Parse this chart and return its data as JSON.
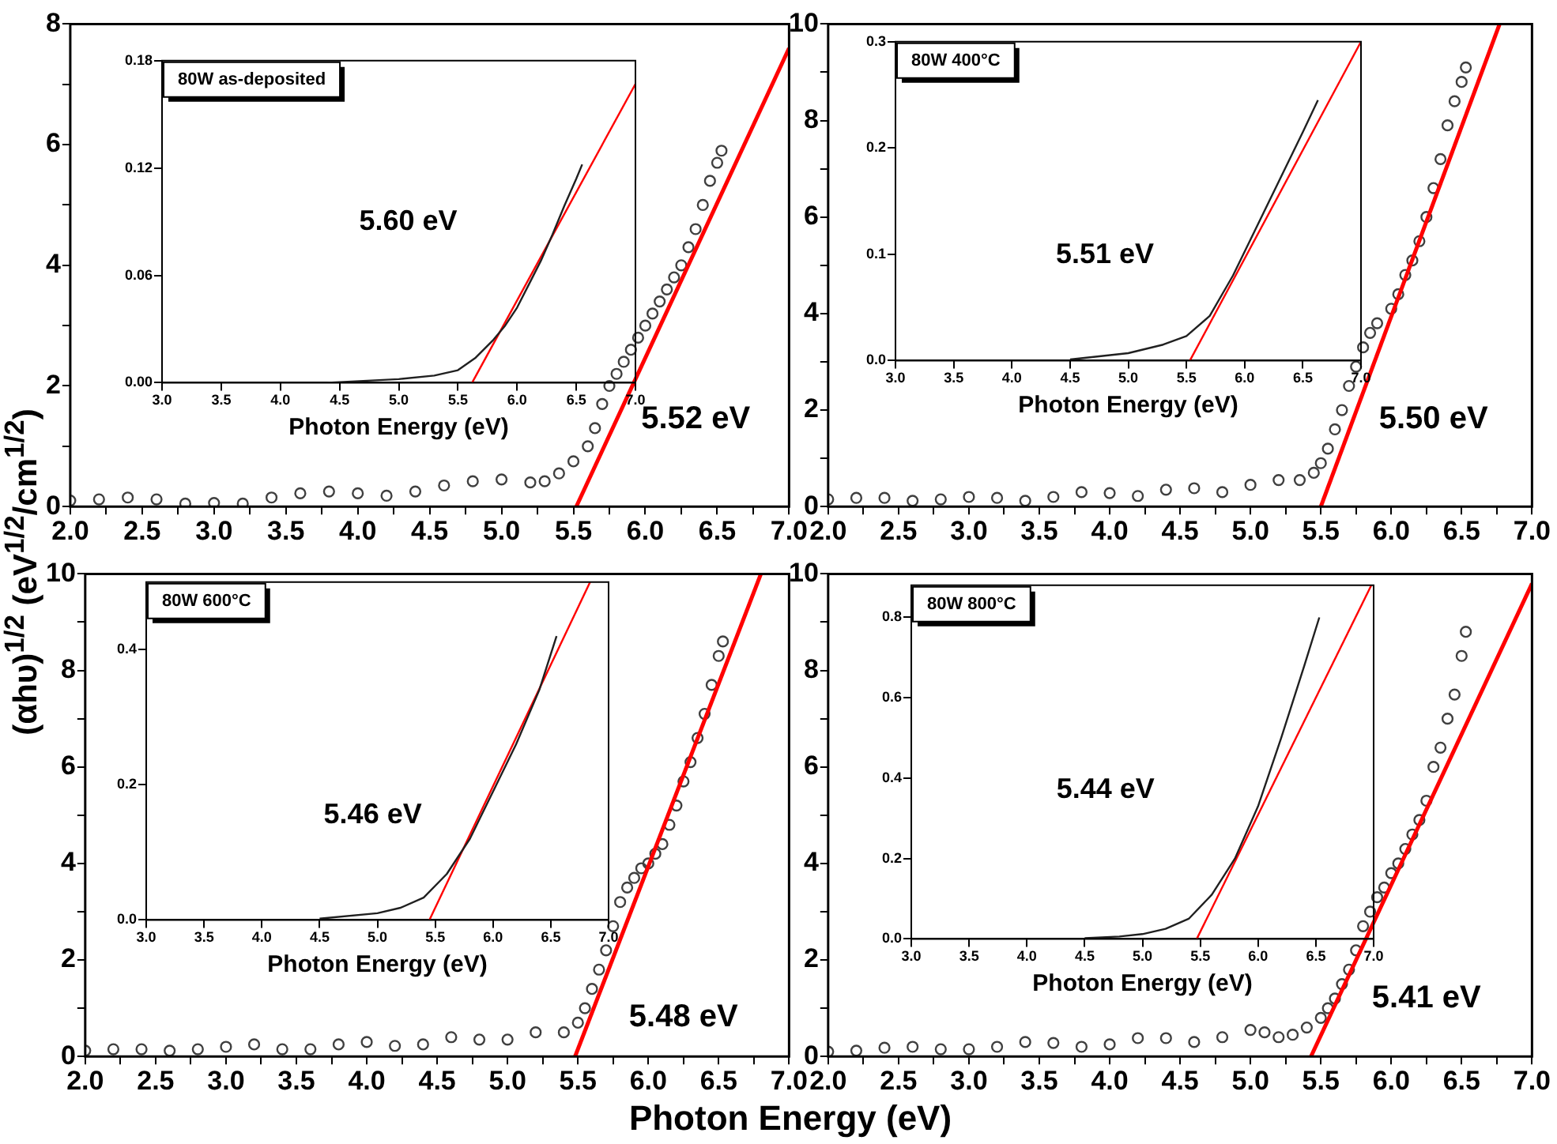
{
  "chart_data": [
    {
      "type": "scatter",
      "ylabel": "(αhυ)$^{1/2}$ (eV$^{1/2}$/cm$^{1/2}$)",
      "marker": "circle",
      "grid": false,
      "annotations": [
        "5.52 eV"
      ],
      "xlim": [
        2,
        7
      ],
      "ylim": [
        0,
        8
      ],
      "xticks": [
        {
          "value": 2,
          "label": "2.0"
        },
        {
          "value": 2.25,
          "label": null
        },
        {
          "value": 2.5,
          "label": "2.5"
        },
        {
          "value": 2.75,
          "label": null
        },
        {
          "value": 3,
          "label": "3.0"
        },
        {
          "value": 3.25,
          "label": null
        },
        {
          "value": 3.5,
          "label": "3.5"
        },
        {
          "value": 3.75,
          "label": null
        },
        {
          "value": 4,
          "label": "4.0"
        },
        {
          "value": 4.25,
          "label": null
        },
        {
          "value": 4.5,
          "label": "4.5"
        },
        {
          "value": 4.75,
          "label": null
        },
        {
          "value": 5,
          "label": "5.0"
        },
        {
          "value": 5.25,
          "label": null
        },
        {
          "value": 5.5,
          "label": "5.5"
        },
        {
          "value": 5.75,
          "label": null
        },
        {
          "value": 6,
          "label": "6.0"
        },
        {
          "value": 6.25,
          "label": null
        },
        {
          "value": 6.5,
          "label": "6.5"
        },
        {
          "value": 6.75,
          "label": null
        },
        {
          "value": 7,
          "label": "7.0"
        }
      ],
      "yticks": [
        0,
        {
          "value": 1,
          "label": null
        },
        2,
        {
          "value": 3,
          "label": null
        },
        4,
        {
          "value": 5,
          "label": null
        },
        6,
        {
          "value": 7,
          "label": null
        },
        8
      ],
      "series": [
        {
          "color": "#404040",
          "x": [
            2.0,
            2.2,
            2.4,
            2.6,
            2.8,
            3.0,
            3.2,
            3.4,
            3.6,
            3.8,
            4.0,
            4.2,
            4.4,
            4.6,
            4.8,
            5.0,
            5.2,
            5.3,
            5.4,
            5.5,
            5.6,
            5.65,
            5.7,
            5.75,
            5.8,
            5.85,
            5.9,
            5.95,
            6.0,
            6.05,
            6.1,
            6.15,
            6.2,
            6.25,
            6.3,
            6.35,
            6.4,
            6.45,
            6.5,
            6.53
          ],
          "values": [
            0.1,
            0.12,
            0.15,
            0.12,
            0.05,
            0.06,
            0.05,
            0.15,
            0.22,
            0.25,
            0.22,
            0.18,
            0.25,
            0.35,
            0.42,
            0.45,
            0.4,
            0.42,
            0.55,
            0.75,
            1.0,
            1.3,
            1.7,
            2.0,
            2.2,
            2.4,
            2.6,
            2.8,
            3.0,
            3.2,
            3.4,
            3.6,
            3.8,
            4.0,
            4.3,
            4.6,
            5.0,
            5.4,
            5.7,
            5.9
          ]
        },
        {
          "type": "line",
          "marker": "none",
          "color": "#ff0000",
          "x": [
            5.52,
            7.0
          ],
          "values": [
            0,
            7.6
          ]
        }
      ]
    },
    {
      "type": "line",
      "title": "80W as-deposited",
      "xlabel": "Photon Energy (eV)",
      "grid": false,
      "annotations": [
        "5.60 eV"
      ],
      "xlim": [
        3,
        7
      ],
      "ylim": [
        0,
        0.18
      ],
      "xticks": [
        {
          "value": 3,
          "label": "3.0"
        },
        {
          "value": 3.5,
          "label": "3.5"
        },
        {
          "value": 4,
          "label": "4.0"
        },
        {
          "value": 4.5,
          "label": "4.5"
        },
        {
          "value": 5,
          "label": "5.0"
        },
        {
          "value": 5.5,
          "label": "5.5"
        },
        {
          "value": 6,
          "label": "6.0"
        },
        {
          "value": 6.5,
          "label": "6.5"
        },
        {
          "value": 7,
          "label": "7.0"
        }
      ],
      "yticks": [
        {
          "value": 0,
          "label": "0.00"
        },
        {
          "value": 0.06,
          "label": "0.06"
        },
        {
          "value": 0.12,
          "label": "0.12"
        },
        {
          "value": 0.18,
          "label": "0.18"
        }
      ],
      "series": [
        {
          "color": "#202020",
          "x": [
            4.4,
            4.7,
            5.0,
            5.3,
            5.5,
            5.65,
            5.8,
            5.9,
            6.0,
            6.1,
            6.2,
            6.3,
            6.4,
            6.5,
            6.55
          ],
          "values": [
            0,
            0.001,
            0.002,
            0.004,
            0.007,
            0.014,
            0.024,
            0.032,
            0.042,
            0.055,
            0.068,
            0.083,
            0.099,
            0.114,
            0.122
          ]
        },
        {
          "color": "#ff0000",
          "x": [
            5.62,
            7.0
          ],
          "values": [
            0,
            0.167
          ]
        }
      ]
    },
    {
      "type": "scatter",
      "marker": "circle",
      "grid": false,
      "annotations": [
        "5.50 eV"
      ],
      "xlim": [
        2,
        7
      ],
      "ylim": [
        0,
        10
      ],
      "xticks": [
        {
          "value": 2,
          "label": "2.0"
        },
        {
          "value": 2.25,
          "label": null
        },
        {
          "value": 2.5,
          "label": "2.5"
        },
        {
          "value": 2.75,
          "label": null
        },
        {
          "value": 3,
          "label": "3.0"
        },
        {
          "value": 3.25,
          "label": null
        },
        {
          "value": 3.5,
          "label": "3.5"
        },
        {
          "value": 3.75,
          "label": null
        },
        {
          "value": 4,
          "label": "4.0"
        },
        {
          "value": 4.25,
          "label": null
        },
        {
          "value": 4.5,
          "label": "4.5"
        },
        {
          "value": 4.75,
          "label": null
        },
        {
          "value": 5,
          "label": "5.0"
        },
        {
          "value": 5.25,
          "label": null
        },
        {
          "value": 5.5,
          "label": "5.5"
        },
        {
          "value": 5.75,
          "label": null
        },
        {
          "value": 6,
          "label": "6.0"
        },
        {
          "value": 6.25,
          "label": null
        },
        {
          "value": 6.5,
          "label": "6.5"
        },
        {
          "value": 6.75,
          "label": null
        },
        {
          "value": 7,
          "label": "7.0"
        }
      ],
      "yticks": [
        0,
        {
          "value": 1,
          "label": null
        },
        2,
        {
          "value": 3,
          "label": null
        },
        4,
        {
          "value": 5,
          "label": null
        },
        6,
        {
          "value": 7,
          "label": null
        },
        8,
        {
          "value": 9,
          "label": null
        },
        10
      ],
      "series": [
        {
          "color": "#404040",
          "x": [
            2.0,
            2.2,
            2.4,
            2.6,
            2.8,
            3.0,
            3.2,
            3.4,
            3.6,
            3.8,
            4.0,
            4.2,
            4.4,
            4.6,
            4.8,
            5.0,
            5.2,
            5.35,
            5.45,
            5.5,
            5.55,
            5.6,
            5.65,
            5.7,
            5.75,
            5.8,
            5.85,
            5.9,
            6.0,
            6.05,
            6.1,
            6.15,
            6.2,
            6.25,
            6.3,
            6.35,
            6.4,
            6.45,
            6.5,
            6.53
          ],
          "values": [
            0.15,
            0.18,
            0.18,
            0.12,
            0.15,
            0.2,
            0.18,
            0.12,
            0.2,
            0.3,
            0.28,
            0.22,
            0.35,
            0.38,
            0.3,
            0.45,
            0.55,
            0.55,
            0.7,
            0.9,
            1.2,
            1.6,
            2.0,
            2.5,
            2.9,
            3.3,
            3.6,
            3.8,
            4.1,
            4.4,
            4.8,
            5.1,
            5.5,
            6.0,
            6.6,
            7.2,
            7.9,
            8.4,
            8.8,
            9.1
          ]
        },
        {
          "type": "line",
          "marker": "none",
          "color": "#ff0000",
          "x": [
            5.5,
            6.77
          ],
          "values": [
            0,
            10
          ]
        }
      ]
    },
    {
      "type": "line",
      "title": "80W 400°C",
      "xlabel": "Photon Energy (eV)",
      "grid": false,
      "annotations": [
        "5.51 eV"
      ],
      "xlim": [
        3,
        7
      ],
      "ylim": [
        0,
        0.3
      ],
      "xticks": [
        {
          "value": 3,
          "label": "3.0"
        },
        {
          "value": 3.5,
          "label": "3.5"
        },
        {
          "value": 4,
          "label": "4.0"
        },
        {
          "value": 4.5,
          "label": "4.5"
        },
        {
          "value": 5,
          "label": "5.0"
        },
        {
          "value": 5.5,
          "label": "5.5"
        },
        {
          "value": 6,
          "label": "6.0"
        },
        {
          "value": 6.5,
          "label": "6.5"
        },
        {
          "value": 7,
          "label": "7.0"
        }
      ],
      "yticks": [
        {
          "value": 0,
          "label": "0.0"
        },
        0.1,
        0.2,
        0.3
      ],
      "series": [
        {
          "color": "#202020",
          "x": [
            4.5,
            5.0,
            5.3,
            5.5,
            5.7,
            5.9,
            6.1,
            6.3,
            6.5,
            6.63
          ],
          "values": [
            0.001,
            0.007,
            0.015,
            0.023,
            0.042,
            0.08,
            0.125,
            0.17,
            0.215,
            0.245
          ]
        },
        {
          "color": "#ff0000",
          "x": [
            5.53,
            7.0
          ],
          "values": [
            0,
            0.3
          ]
        }
      ]
    },
    {
      "type": "scatter",
      "xlabel": "Photon Energy (eV)",
      "marker": "circle",
      "grid": false,
      "annotations": [
        "5.48 eV"
      ],
      "xlim": [
        2,
        7
      ],
      "ylim": [
        0,
        10
      ],
      "xticks": [
        {
          "value": 2,
          "label": "2.0"
        },
        {
          "value": 2.25,
          "label": null
        },
        {
          "value": 2.5,
          "label": "2.5"
        },
        {
          "value": 2.75,
          "label": null
        },
        {
          "value": 3,
          "label": "3.0"
        },
        {
          "value": 3.25,
          "label": null
        },
        {
          "value": 3.5,
          "label": "3.5"
        },
        {
          "value": 3.75,
          "label": null
        },
        {
          "value": 4,
          "label": "4.0"
        },
        {
          "value": 4.25,
          "label": null
        },
        {
          "value": 4.5,
          "label": "4.5"
        },
        {
          "value": 4.75,
          "label": null
        },
        {
          "value": 5,
          "label": "5.0"
        },
        {
          "value": 5.25,
          "label": null
        },
        {
          "value": 5.5,
          "label": "5.5"
        },
        {
          "value": 5.75,
          "label": null
        },
        {
          "value": 6,
          "label": "6.0"
        },
        {
          "value": 6.25,
          "label": null
        },
        {
          "value": 6.5,
          "label": "6.5"
        },
        {
          "value": 6.75,
          "label": null
        },
        {
          "value": 7,
          "label": "7.0"
        }
      ],
      "yticks": [
        0,
        {
          "value": 1,
          "label": null
        },
        2,
        {
          "value": 3,
          "label": null
        },
        4,
        {
          "value": 5,
          "label": null
        },
        6,
        {
          "value": 7,
          "label": null
        },
        8,
        {
          "value": 9,
          "label": null
        },
        10
      ],
      "series": [
        {
          "color": "#404040",
          "x": [
            2.0,
            2.2,
            2.4,
            2.6,
            2.8,
            3.0,
            3.2,
            3.4,
            3.6,
            3.8,
            4.0,
            4.2,
            4.4,
            4.6,
            4.8,
            5.0,
            5.2,
            5.4,
            5.5,
            5.55,
            5.6,
            5.65,
            5.7,
            5.75,
            5.8,
            5.85,
            5.9,
            5.95,
            6.0,
            6.05,
            6.1,
            6.15,
            6.2,
            6.25,
            6.3,
            6.35,
            6.4,
            6.45,
            6.5,
            6.53
          ],
          "values": [
            0.12,
            0.15,
            0.15,
            0.12,
            0.15,
            0.2,
            0.25,
            0.15,
            0.15,
            0.25,
            0.3,
            0.22,
            0.25,
            0.4,
            0.35,
            0.35,
            0.5,
            0.5,
            0.7,
            1.0,
            1.4,
            1.8,
            2.2,
            2.7,
            3.2,
            3.5,
            3.7,
            3.9,
            4.0,
            4.2,
            4.4,
            4.8,
            5.2,
            5.7,
            6.1,
            6.6,
            7.1,
            7.7,
            8.3,
            8.6
          ]
        },
        {
          "type": "line",
          "marker": "none",
          "color": "#ff0000",
          "x": [
            5.48,
            6.8
          ],
          "values": [
            0,
            10
          ]
        }
      ]
    },
    {
      "type": "line",
      "title": "80W 600°C",
      "xlabel": "Photon Energy (eV)",
      "grid": false,
      "annotations": [
        "5.46 eV"
      ],
      "xlim": [
        3,
        7
      ],
      "ylim": [
        0,
        0.5
      ],
      "xticks": [
        {
          "value": 3,
          "label": "3.0"
        },
        {
          "value": 3.5,
          "label": "3.5"
        },
        {
          "value": 4,
          "label": "4.0"
        },
        {
          "value": 4.5,
          "label": "4.5"
        },
        {
          "value": 5,
          "label": "5.0"
        },
        {
          "value": 5.5,
          "label": "5.5"
        },
        {
          "value": 6,
          "label": "6.0"
        },
        {
          "value": 6.5,
          "label": "6.5"
        },
        {
          "value": 7,
          "label": "7.0"
        }
      ],
      "yticks": [
        {
          "value": 0,
          "label": "0.0"
        },
        0.2,
        0.4
      ],
      "series": [
        {
          "color": "#202020",
          "x": [
            4.5,
            5.0,
            5.2,
            5.4,
            5.6,
            5.8,
            6.0,
            6.2,
            6.4,
            6.55
          ],
          "values": [
            0.002,
            0.01,
            0.018,
            0.033,
            0.068,
            0.12,
            0.19,
            0.26,
            0.34,
            0.42
          ]
        },
        {
          "color": "#ff0000",
          "x": [
            5.45,
            6.84
          ],
          "values": [
            0,
            0.5
          ]
        }
      ]
    },
    {
      "type": "scatter",
      "marker": "circle",
      "grid": false,
      "annotations": [
        "5.41 eV"
      ],
      "xlim": [
        2,
        7
      ],
      "ylim": [
        0,
        10
      ],
      "xticks": [
        {
          "value": 2,
          "label": "2.0"
        },
        {
          "value": 2.25,
          "label": null
        },
        {
          "value": 2.5,
          "label": "2.5"
        },
        {
          "value": 2.75,
          "label": null
        },
        {
          "value": 3,
          "label": "3.0"
        },
        {
          "value": 3.25,
          "label": null
        },
        {
          "value": 3.5,
          "label": "3.5"
        },
        {
          "value": 3.75,
          "label": null
        },
        {
          "value": 4,
          "label": "4.0"
        },
        {
          "value": 4.25,
          "label": null
        },
        {
          "value": 4.5,
          "label": "4.5"
        },
        {
          "value": 4.75,
          "label": null
        },
        {
          "value": 5,
          "label": "5.0"
        },
        {
          "value": 5.25,
          "label": null
        },
        {
          "value": 5.5,
          "label": "5.5"
        },
        {
          "value": 5.75,
          "label": null
        },
        {
          "value": 6,
          "label": "6.0"
        },
        {
          "value": 6.25,
          "label": null
        },
        {
          "value": 6.5,
          "label": "6.5"
        },
        {
          "value": 6.75,
          "label": null
        },
        {
          "value": 7,
          "label": "7.0"
        }
      ],
      "yticks": [
        0,
        {
          "value": 1,
          "label": null
        },
        2,
        {
          "value": 3,
          "label": null
        },
        4,
        {
          "value": 5,
          "label": null
        },
        6,
        {
          "value": 7,
          "label": null
        },
        8,
        {
          "value": 9,
          "label": null
        },
        10
      ],
      "series": [
        {
          "color": "#404040",
          "x": [
            2.0,
            2.2,
            2.4,
            2.6,
            2.8,
            3.0,
            3.2,
            3.4,
            3.6,
            3.8,
            4.0,
            4.2,
            4.4,
            4.6,
            4.8,
            5.0,
            5.1,
            5.2,
            5.3,
            5.4,
            5.5,
            5.55,
            5.6,
            5.65,
            5.7,
            5.75,
            5.8,
            5.85,
            5.9,
            5.95,
            6.0,
            6.05,
            6.1,
            6.15,
            6.2,
            6.25,
            6.3,
            6.35,
            6.4,
            6.45,
            6.5,
            6.53
          ],
          "values": [
            0.1,
            0.12,
            0.18,
            0.2,
            0.15,
            0.15,
            0.2,
            0.3,
            0.28,
            0.2,
            0.25,
            0.38,
            0.38,
            0.3,
            0.4,
            0.55,
            0.5,
            0.4,
            0.45,
            0.6,
            0.8,
            1.0,
            1.2,
            1.5,
            1.8,
            2.2,
            2.7,
            3.0,
            3.3,
            3.5,
            3.8,
            4.0,
            4.3,
            4.6,
            4.9,
            5.3,
            6.0,
            6.4,
            7.0,
            7.5,
            8.3,
            8.8
          ]
        },
        {
          "type": "line",
          "marker": "none",
          "color": "#ff0000",
          "x": [
            5.43,
            7.0
          ],
          "values": [
            0,
            9.8
          ]
        }
      ]
    },
    {
      "type": "line",
      "title": "80W 800°C",
      "xlabel": "Photon Energy (eV)",
      "grid": false,
      "annotations": [
        "5.44 eV"
      ],
      "xlim": [
        3,
        7
      ],
      "ylim": [
        0,
        0.88
      ],
      "xticks": [
        {
          "value": 3,
          "label": "3.0"
        },
        {
          "value": 3.5,
          "label": "3.5"
        },
        {
          "value": 4,
          "label": "4.0"
        },
        {
          "value": 4.5,
          "label": "4.5"
        },
        {
          "value": 5,
          "label": "5.0"
        },
        {
          "value": 5.5,
          "label": "5.5"
        },
        {
          "value": 6,
          "label": "6.0"
        },
        {
          "value": 6.5,
          "label": "6.5"
        },
        {
          "value": 7,
          "label": "7.0"
        }
      ],
      "yticks": [
        {
          "value": 0,
          "label": "0.0"
        },
        0.2,
        0.4,
        0.6,
        0.8
      ],
      "series": [
        {
          "color": "#202020",
          "x": [
            4.5,
            4.8,
            5.0,
            5.2,
            5.4,
            5.6,
            5.8,
            6.0,
            6.2,
            6.4,
            6.53
          ],
          "values": [
            0.002,
            0.006,
            0.012,
            0.025,
            0.05,
            0.11,
            0.2,
            0.33,
            0.5,
            0.68,
            0.8
          ]
        },
        {
          "color": "#ff0000",
          "x": [
            5.47,
            6.98
          ],
          "values": [
            0,
            0.88
          ]
        }
      ]
    }
  ]
}
